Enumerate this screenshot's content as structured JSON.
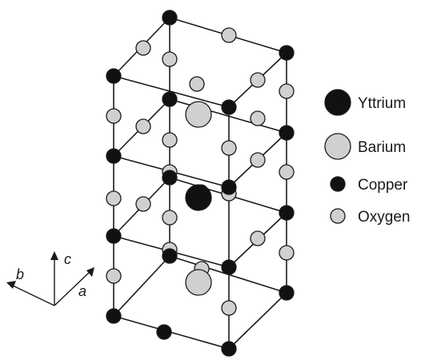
{
  "colors": {
    "yttrium_fill": "#111111",
    "barium_fill": "#d0d0d0",
    "copper_fill": "#111111",
    "oxygen_fill": "#d0d0d0",
    "outline": "#1a1a1a"
  },
  "legend": {
    "items": [
      {
        "atom": "yttrium",
        "label": "Yttrium"
      },
      {
        "atom": "barium",
        "label": "Barium"
      },
      {
        "atom": "copper",
        "label": "Copper"
      },
      {
        "atom": "oxygen",
        "label": "Oxygen"
      }
    ]
  },
  "axes": {
    "a_label": "a",
    "b_label": "b",
    "c_label": "c"
  },
  "structure": {
    "atom_counts": {
      "yttrium": 1,
      "barium": 2,
      "copper": 16,
      "oxygen": 26
    }
  }
}
